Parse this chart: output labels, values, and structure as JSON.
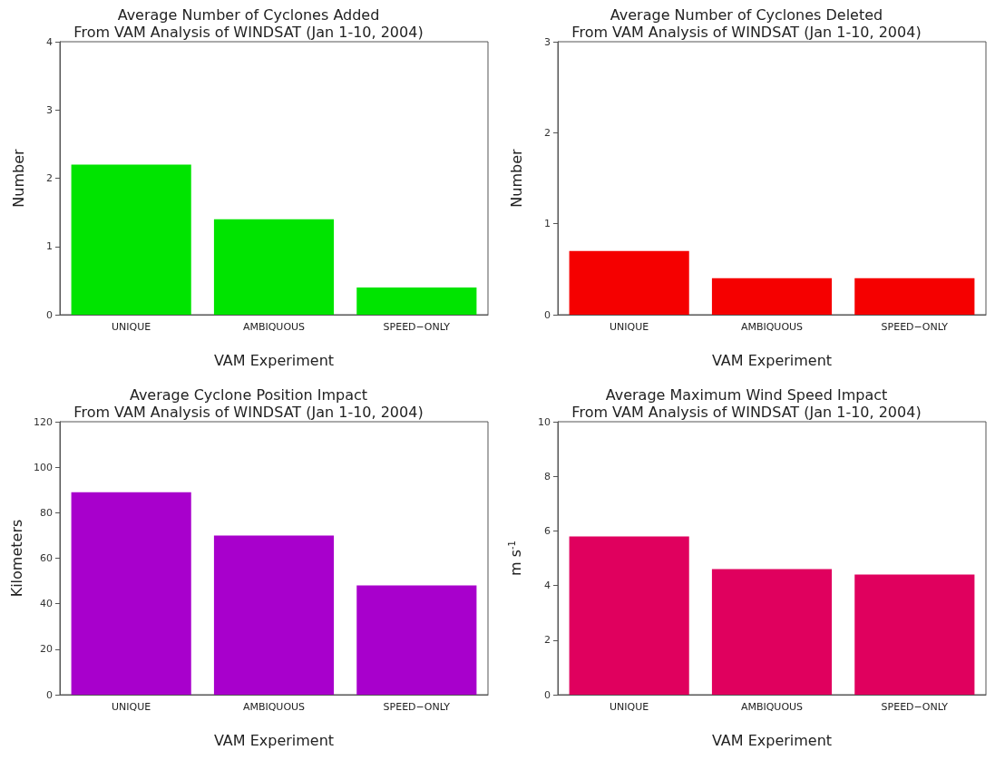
{
  "chart_data": [
    {
      "type": "bar",
      "title": "Average Number of Cyclones Added\nFrom VAM Analysis of WINDSAT (Jan 1-10, 2004)",
      "xlabel": "VAM Experiment",
      "ylabel": "Number",
      "categories": [
        "UNIQUE",
        "AMBIQUOUS",
        "SPEED−ONLY"
      ],
      "values": [
        2.2,
        1.4,
        0.4
      ],
      "color": "#00e400",
      "ylim": [
        0,
        4
      ],
      "yticks": [
        0,
        1,
        2,
        3,
        4
      ],
      "grid": false
    },
    {
      "type": "bar",
      "title": "Average Number of Cyclones Deleted\nFrom VAM Analysis of WINDSAT (Jan 1-10, 2004)",
      "xlabel": "VAM Experiment",
      "ylabel": "Number",
      "categories": [
        "UNIQUE",
        "AMBIQUOUS",
        "SPEED−ONLY"
      ],
      "values": [
        0.7,
        0.4,
        0.4
      ],
      "color": "#f50000",
      "ylim": [
        0,
        3
      ],
      "yticks": [
        0,
        1,
        2,
        3
      ],
      "grid": false
    },
    {
      "type": "bar",
      "title": "Average Cyclone Position Impact\nFrom VAM Analysis of WINDSAT (Jan 1-10, 2004)",
      "xlabel": "VAM Experiment",
      "ylabel": "Kilometers",
      "categories": [
        "UNIQUE",
        "AMBIQUOUS",
        "SPEED−ONLY"
      ],
      "values": [
        89,
        70,
        48
      ],
      "color": "#a800cc",
      "ylim": [
        0,
        120
      ],
      "yticks": [
        0,
        20,
        40,
        60,
        80,
        100,
        120
      ],
      "grid": false
    },
    {
      "type": "bar",
      "title": "Average Maximum Wind Speed Impact\nFrom VAM Analysis of WINDSAT (Jan 1-10, 2004)",
      "xlabel": "VAM Experiment",
      "ylabel": "m s$^{-1}$",
      "categories": [
        "UNIQUE",
        "AMBIQUOUS",
        "SPEED−ONLY"
      ],
      "values": [
        5.8,
        4.6,
        4.4
      ],
      "color": "#e0005e",
      "ylim": [
        0,
        10
      ],
      "yticks": [
        0,
        2,
        4,
        6,
        8,
        10
      ],
      "grid": false
    }
  ]
}
